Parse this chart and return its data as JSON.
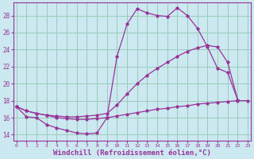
{
  "background_color": "#cce8f0",
  "grid_color": "#99ccbb",
  "line_color": "#993399",
  "xlabel": "Windchill (Refroidissement éolien,°C)",
  "xlabel_fontsize": 6.5,
  "ylabel_ticks": [
    14,
    16,
    18,
    20,
    22,
    24,
    26,
    28
  ],
  "xticks": [
    0,
    1,
    2,
    3,
    4,
    5,
    6,
    7,
    8,
    9,
    10,
    11,
    12,
    13,
    14,
    15,
    16,
    17,
    18,
    19,
    20,
    21,
    22,
    23
  ],
  "xlim": [
    -0.3,
    23.3
  ],
  "ylim": [
    13.3,
    29.5
  ],
  "series1": [
    [
      0,
      17.3
    ],
    [
      1,
      16.1
    ],
    [
      2,
      16.0
    ],
    [
      3,
      15.2
    ],
    [
      4,
      14.8
    ],
    [
      5,
      14.5
    ],
    [
      6,
      14.2
    ],
    [
      7,
      14.1
    ],
    [
      8,
      14.2
    ],
    [
      9,
      16.0
    ],
    [
      10,
      23.2
    ],
    [
      11,
      27.0
    ],
    [
      12,
      28.8
    ],
    [
      13,
      28.3
    ],
    [
      14,
      28.0
    ],
    [
      15,
      27.9
    ],
    [
      16,
      28.9
    ],
    [
      17,
      28.0
    ],
    [
      18,
      26.5
    ],
    [
      19,
      24.3
    ],
    [
      20,
      21.8
    ],
    [
      21,
      21.3
    ],
    [
      22,
      18.1
    ]
  ],
  "series2": [
    [
      0,
      17.3
    ],
    [
      1,
      16.8
    ],
    [
      2,
      16.5
    ],
    [
      3,
      16.3
    ],
    [
      4,
      16.2
    ],
    [
      5,
      16.1
    ],
    [
      6,
      16.1
    ],
    [
      7,
      16.2
    ],
    [
      8,
      16.3
    ],
    [
      9,
      16.5
    ],
    [
      10,
      17.5
    ],
    [
      11,
      18.8
    ],
    [
      12,
      20.0
    ],
    [
      13,
      21.0
    ],
    [
      14,
      21.8
    ],
    [
      15,
      22.5
    ],
    [
      16,
      23.2
    ],
    [
      17,
      23.8
    ],
    [
      18,
      24.2
    ],
    [
      19,
      24.5
    ],
    [
      20,
      24.3
    ],
    [
      21,
      22.5
    ],
    [
      22,
      18.1
    ]
  ],
  "series3": [
    [
      0,
      17.3
    ],
    [
      1,
      16.8
    ],
    [
      2,
      16.5
    ],
    [
      3,
      16.3
    ],
    [
      4,
      16.0
    ],
    [
      5,
      15.9
    ],
    [
      6,
      15.8
    ],
    [
      7,
      15.8
    ],
    [
      8,
      15.9
    ],
    [
      9,
      16.0
    ],
    [
      10,
      16.2
    ],
    [
      11,
      16.4
    ],
    [
      12,
      16.6
    ],
    [
      13,
      16.8
    ],
    [
      14,
      17.0
    ],
    [
      15,
      17.1
    ],
    [
      16,
      17.3
    ],
    [
      17,
      17.4
    ],
    [
      18,
      17.6
    ],
    [
      19,
      17.7
    ],
    [
      20,
      17.8
    ],
    [
      21,
      17.9
    ],
    [
      22,
      18.0
    ],
    [
      23,
      18.0
    ]
  ]
}
